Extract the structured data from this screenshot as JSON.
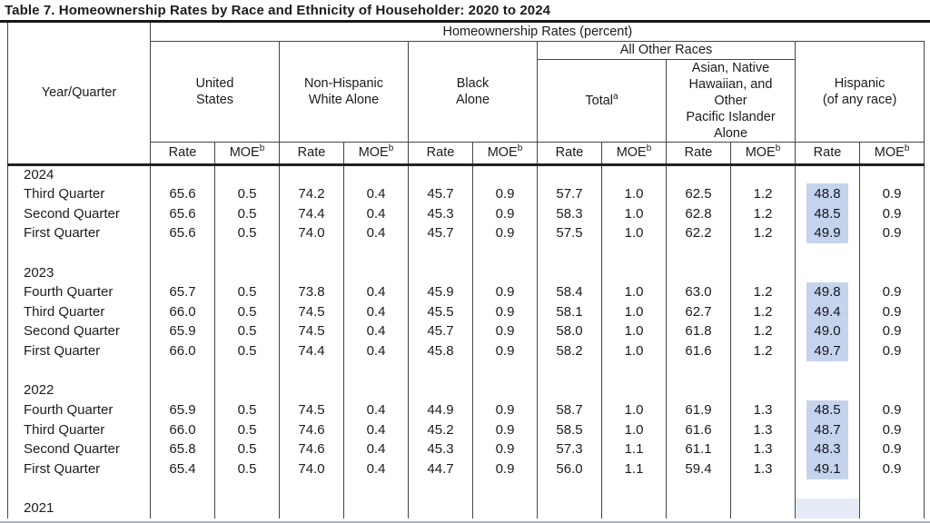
{
  "title": "Table 7. Homeownership Rates by Race and Ethnicity of Householder: 2020 to 2024",
  "colors": {
    "highlight": "#c5d4ec",
    "border": "#454545",
    "text": "#1c1c1c"
  },
  "table": {
    "row_header": "Year/Quarter",
    "spanner": "Homeownership Rates (percent)",
    "all_other_races_label": "All Other Races",
    "groups": [
      {
        "label": "United\nStates",
        "sup": ""
      },
      {
        "label": "Non-Hispanic\nWhite Alone",
        "sup": ""
      },
      {
        "label": "Black\nAlone",
        "sup": ""
      },
      {
        "label": "Total",
        "sup": "a"
      },
      {
        "label": "Asian, Native\nHawaiian, and\nOther\nPacific Islander\nAlone",
        "sup": ""
      },
      {
        "label": "Hispanic\n(of any race)",
        "sup": ""
      }
    ],
    "rate_label": "Rate",
    "moe_label": "MOE",
    "moe_sup": "b",
    "rows": [
      {
        "type": "year",
        "label": "2024"
      },
      {
        "type": "data",
        "label": "Third Quarter",
        "values": [
          "65.6",
          "0.5",
          "74.2",
          "0.4",
          "45.7",
          "0.9",
          "57.7",
          "1.0",
          "62.5",
          "1.2",
          "48.8",
          "0.9"
        ],
        "highlight_col": 10
      },
      {
        "type": "data",
        "label": "Second Quarter",
        "values": [
          "65.6",
          "0.5",
          "74.4",
          "0.4",
          "45.3",
          "0.9",
          "58.3",
          "1.0",
          "62.8",
          "1.2",
          "48.5",
          "0.9"
        ],
        "highlight_col": 10
      },
      {
        "type": "data",
        "label": "First Quarter",
        "values": [
          "65.6",
          "0.5",
          "74.0",
          "0.4",
          "45.7",
          "0.9",
          "57.5",
          "1.0",
          "62.2",
          "1.2",
          "49.9",
          "0.9"
        ],
        "highlight_col": 10
      },
      {
        "type": "spacer"
      },
      {
        "type": "year",
        "label": "2023"
      },
      {
        "type": "data",
        "label": "Fourth Quarter",
        "values": [
          "65.7",
          "0.5",
          "73.8",
          "0.4",
          "45.9",
          "0.9",
          "58.4",
          "1.0",
          "63.0",
          "1.2",
          "49.8",
          "0.9"
        ],
        "highlight_col": 10
      },
      {
        "type": "data",
        "label": "Third Quarter",
        "values": [
          "66.0",
          "0.5",
          "74.5",
          "0.4",
          "45.5",
          "0.9",
          "58.1",
          "1.0",
          "62.7",
          "1.2",
          "49.4",
          "0.9"
        ],
        "highlight_col": 10
      },
      {
        "type": "data",
        "label": "Second Quarter",
        "values": [
          "65.9",
          "0.5",
          "74.5",
          "0.4",
          "45.7",
          "0.9",
          "58.0",
          "1.0",
          "61.8",
          "1.2",
          "49.0",
          "0.9"
        ],
        "highlight_col": 10
      },
      {
        "type": "data",
        "label": "First Quarter",
        "values": [
          "66.0",
          "0.5",
          "74.4",
          "0.4",
          "45.8",
          "0.9",
          "58.2",
          "1.0",
          "61.6",
          "1.2",
          "49.7",
          "0.9"
        ],
        "highlight_col": 10
      },
      {
        "type": "spacer"
      },
      {
        "type": "year",
        "label": "2022"
      },
      {
        "type": "data",
        "label": "Fourth Quarter",
        "values": [
          "65.9",
          "0.5",
          "74.5",
          "0.4",
          "44.9",
          "0.9",
          "58.7",
          "1.0",
          "61.9",
          "1.3",
          "48.5",
          "0.9"
        ],
        "highlight_col": 10
      },
      {
        "type": "data",
        "label": "Third Quarter",
        "values": [
          "66.0",
          "0.5",
          "74.6",
          "0.4",
          "45.2",
          "0.9",
          "58.5",
          "1.0",
          "61.6",
          "1.3",
          "48.7",
          "0.9"
        ],
        "highlight_col": 10
      },
      {
        "type": "data",
        "label": "Second Quarter",
        "values": [
          "65.8",
          "0.5",
          "74.6",
          "0.4",
          "45.3",
          "0.9",
          "57.3",
          "1.1",
          "61.1",
          "1.3",
          "48.3",
          "0.9"
        ],
        "highlight_col": 10
      },
      {
        "type": "data",
        "label": "First Quarter",
        "values": [
          "65.4",
          "0.5",
          "74.0",
          "0.4",
          "44.7",
          "0.9",
          "56.0",
          "1.1",
          "59.4",
          "1.3",
          "49.1",
          "0.9"
        ],
        "highlight_col": 10
      },
      {
        "type": "spacer"
      },
      {
        "type": "year",
        "label": "2021",
        "tint_hispanic": true
      }
    ]
  }
}
